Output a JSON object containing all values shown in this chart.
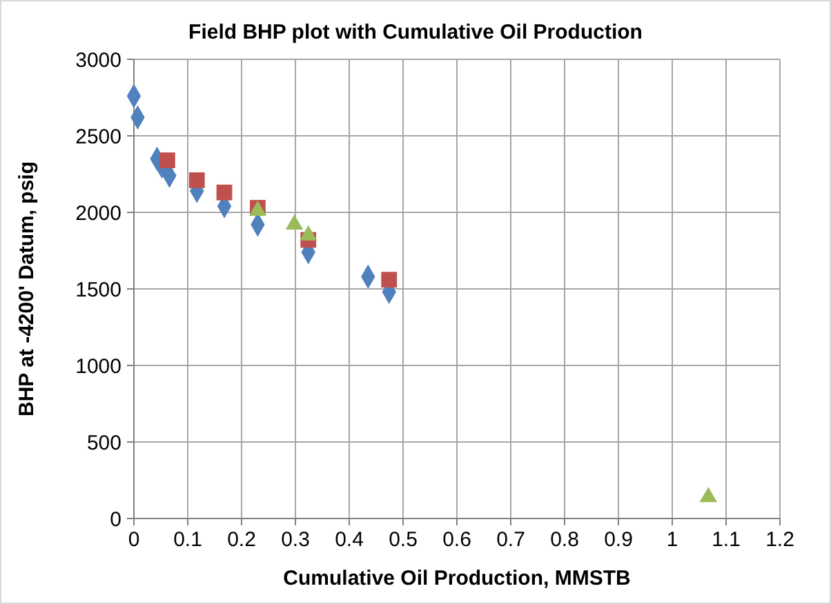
{
  "chart_data": {
    "type": "scatter",
    "title": "Field BHP plot with Cumulative Oil Production",
    "xlabel": "Cumulative Oil Production, MMSTB",
    "ylabel": "BHP at -4200' Datum, psig",
    "xlim": [
      0,
      1.2
    ],
    "xticks": [
      0,
      0.1,
      0.2,
      0.3,
      0.4,
      0.5,
      0.6,
      0.7,
      0.8,
      0.9,
      1,
      1.1,
      1.2
    ],
    "ylim": [
      0,
      3000
    ],
    "yticks": [
      0,
      500,
      1000,
      1500,
      2000,
      2500,
      3000
    ],
    "grid": true,
    "series": [
      {
        "color": "#4f81bd",
        "marker": "diamond",
        "x": [
          0,
          0.007,
          0.043,
          0.052,
          0.066,
          0.117,
          0.168,
          0.23,
          0.324,
          0.435,
          0.474
        ],
        "values": [
          2760,
          2620,
          2350,
          2300,
          2240,
          2140,
          2040,
          1920,
          1740,
          1580,
          1480
        ]
      },
      {
        "color": "#c0504d",
        "marker": "square",
        "x": [
          0.062,
          0.117,
          0.168,
          0.23,
          0.324,
          0.474
        ],
        "values": [
          2340,
          2210,
          2130,
          2030,
          1820,
          1560
        ]
      },
      {
        "color": "#9bbb59",
        "marker": "triangle",
        "x": [
          0.23,
          0.298,
          0.324,
          1.067
        ],
        "values": [
          2010,
          1920,
          1850,
          140
        ]
      }
    ]
  }
}
